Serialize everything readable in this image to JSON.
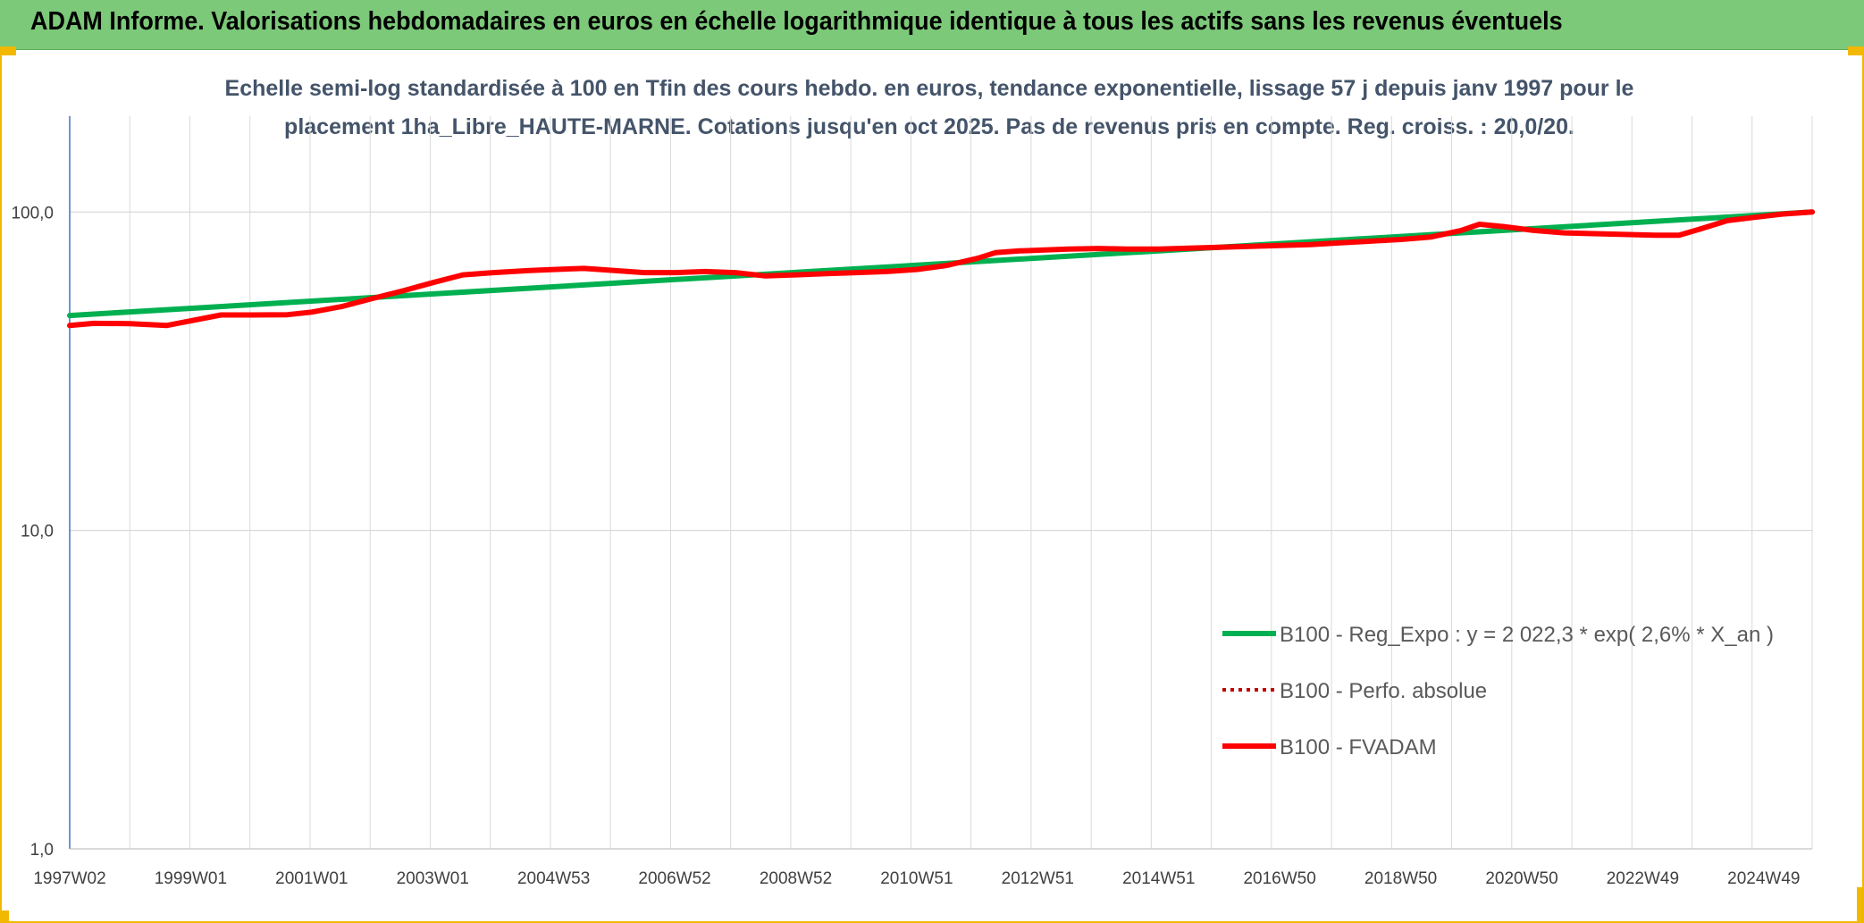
{
  "header": {
    "title": "ADAM Informe. Valorisations hebdomadaires en euros en échelle logarithmique identique à tous les actifs sans les revenus éventuels"
  },
  "colors": {
    "header_bg": "#7cc979",
    "frame_accent": "#f2b800",
    "trend_line": "#00b050",
    "fvadam_line": "#ff0000",
    "perf_line": "#c00000",
    "title_text": "#44546a",
    "grid": "#d9d9d9",
    "y_axis": "#4472c4"
  },
  "chart_data": {
    "type": "line",
    "title_lines": [
      "Echelle semi-log standardisée à 100 en Tfin des cours hebdo. en euros, tendance exponentielle, lissage 57 j depuis janv 1997 pour le",
      "placement 1ha_Libre_HAUTE-MARNE. Cotations jusqu'en oct 2025. Pas de revenus pris en compte. Reg. croiss. : 20,0/20."
    ],
    "y_scale": "log",
    "ylim": [
      1,
      200
    ],
    "y_ticks": [
      {
        "value": 1,
        "label": "1,0"
      },
      {
        "value": 10,
        "label": "10,0"
      },
      {
        "value": 100,
        "label": "100,0"
      }
    ],
    "xlim": [
      1997.0,
      2025.8
    ],
    "x_ticks": [
      {
        "x": 1997.0,
        "label": "1997W02"
      },
      {
        "x": 1999.0,
        "label": "1999W01"
      },
      {
        "x": 2001.0,
        "label": "2001W01"
      },
      {
        "x": 2003.0,
        "label": "2003W01"
      },
      {
        "x": 2005.0,
        "label": "2004W53"
      },
      {
        "x": 2007.0,
        "label": "2006W52"
      },
      {
        "x": 2009.0,
        "label": "2008W52"
      },
      {
        "x": 2011.0,
        "label": "2010W51"
      },
      {
        "x": 2013.0,
        "label": "2012W51"
      },
      {
        "x": 2015.0,
        "label": "2014W51"
      },
      {
        "x": 2017.0,
        "label": "2016W50"
      },
      {
        "x": 2019.0,
        "label": "2018W50"
      },
      {
        "x": 2021.0,
        "label": "2020W50"
      },
      {
        "x": 2023.0,
        "label": "2022W49"
      },
      {
        "x": 2025.0,
        "label": "2024W49"
      }
    ],
    "grid": true,
    "legend_position": "lower-right",
    "series": [
      {
        "name": "B100 - Reg_Expo : y = 2 022,3 * exp( 2,6% *  X_an )",
        "style": "solid",
        "color": "#00b050",
        "points": [
          [
            1997.0,
            47.3
          ],
          [
            2025.8,
            100.0
          ]
        ]
      },
      {
        "name": "B100 - Perfo. absolue",
        "style": "dotted",
        "color": "#c00000",
        "points": []
      },
      {
        "name": "B100 - FVADAM",
        "style": "solid",
        "color": "#ff0000",
        "points": [
          [
            1997.0,
            44.0
          ],
          [
            1997.4,
            44.7
          ],
          [
            1998.0,
            44.6
          ],
          [
            1998.6,
            44.0
          ],
          [
            1999.0,
            45.5
          ],
          [
            1999.5,
            47.5
          ],
          [
            2000.0,
            47.5
          ],
          [
            2000.6,
            47.6
          ],
          [
            2001.0,
            48.5
          ],
          [
            2001.5,
            50.5
          ],
          [
            2002.0,
            53.5
          ],
          [
            2002.5,
            56.5
          ],
          [
            2003.0,
            60.0
          ],
          [
            2003.5,
            63.5
          ],
          [
            2004.0,
            64.5
          ],
          [
            2004.6,
            65.5
          ],
          [
            2005.0,
            66.0
          ],
          [
            2005.5,
            66.5
          ],
          [
            2006.0,
            65.5
          ],
          [
            2006.5,
            64.5
          ],
          [
            2007.0,
            64.5
          ],
          [
            2007.5,
            65.0
          ],
          [
            2008.0,
            64.5
          ],
          [
            2008.5,
            63.0
          ],
          [
            2009.0,
            63.5
          ],
          [
            2009.5,
            64.0
          ],
          [
            2010.0,
            64.5
          ],
          [
            2010.5,
            65.0
          ],
          [
            2011.0,
            66.0
          ],
          [
            2011.5,
            68.0
          ],
          [
            2012.0,
            71.5
          ],
          [
            2012.3,
            74.5
          ],
          [
            2012.7,
            75.5
          ],
          [
            2013.5,
            76.5
          ],
          [
            2014.0,
            76.8
          ],
          [
            2014.5,
            76.5
          ],
          [
            2015.0,
            76.5
          ],
          [
            2015.5,
            77.0
          ],
          [
            2016.0,
            77.5
          ],
          [
            2016.5,
            78.0
          ],
          [
            2017.0,
            78.5
          ],
          [
            2017.5,
            79.0
          ],
          [
            2018.0,
            80.0
          ],
          [
            2018.5,
            81.0
          ],
          [
            2019.0,
            82.0
          ],
          [
            2019.5,
            83.5
          ],
          [
            2020.0,
            87.5
          ],
          [
            2020.3,
            91.5
          ],
          [
            2020.7,
            90.0
          ],
          [
            2021.2,
            87.5
          ],
          [
            2021.7,
            86.0
          ],
          [
            2022.2,
            85.5
          ],
          [
            2022.7,
            85.0
          ],
          [
            2023.2,
            84.5
          ],
          [
            2023.6,
            84.5
          ],
          [
            2024.0,
            89.0
          ],
          [
            2024.4,
            94.0
          ],
          [
            2024.9,
            96.5
          ],
          [
            2025.3,
            98.5
          ],
          [
            2025.8,
            100.0
          ]
        ]
      }
    ]
  }
}
